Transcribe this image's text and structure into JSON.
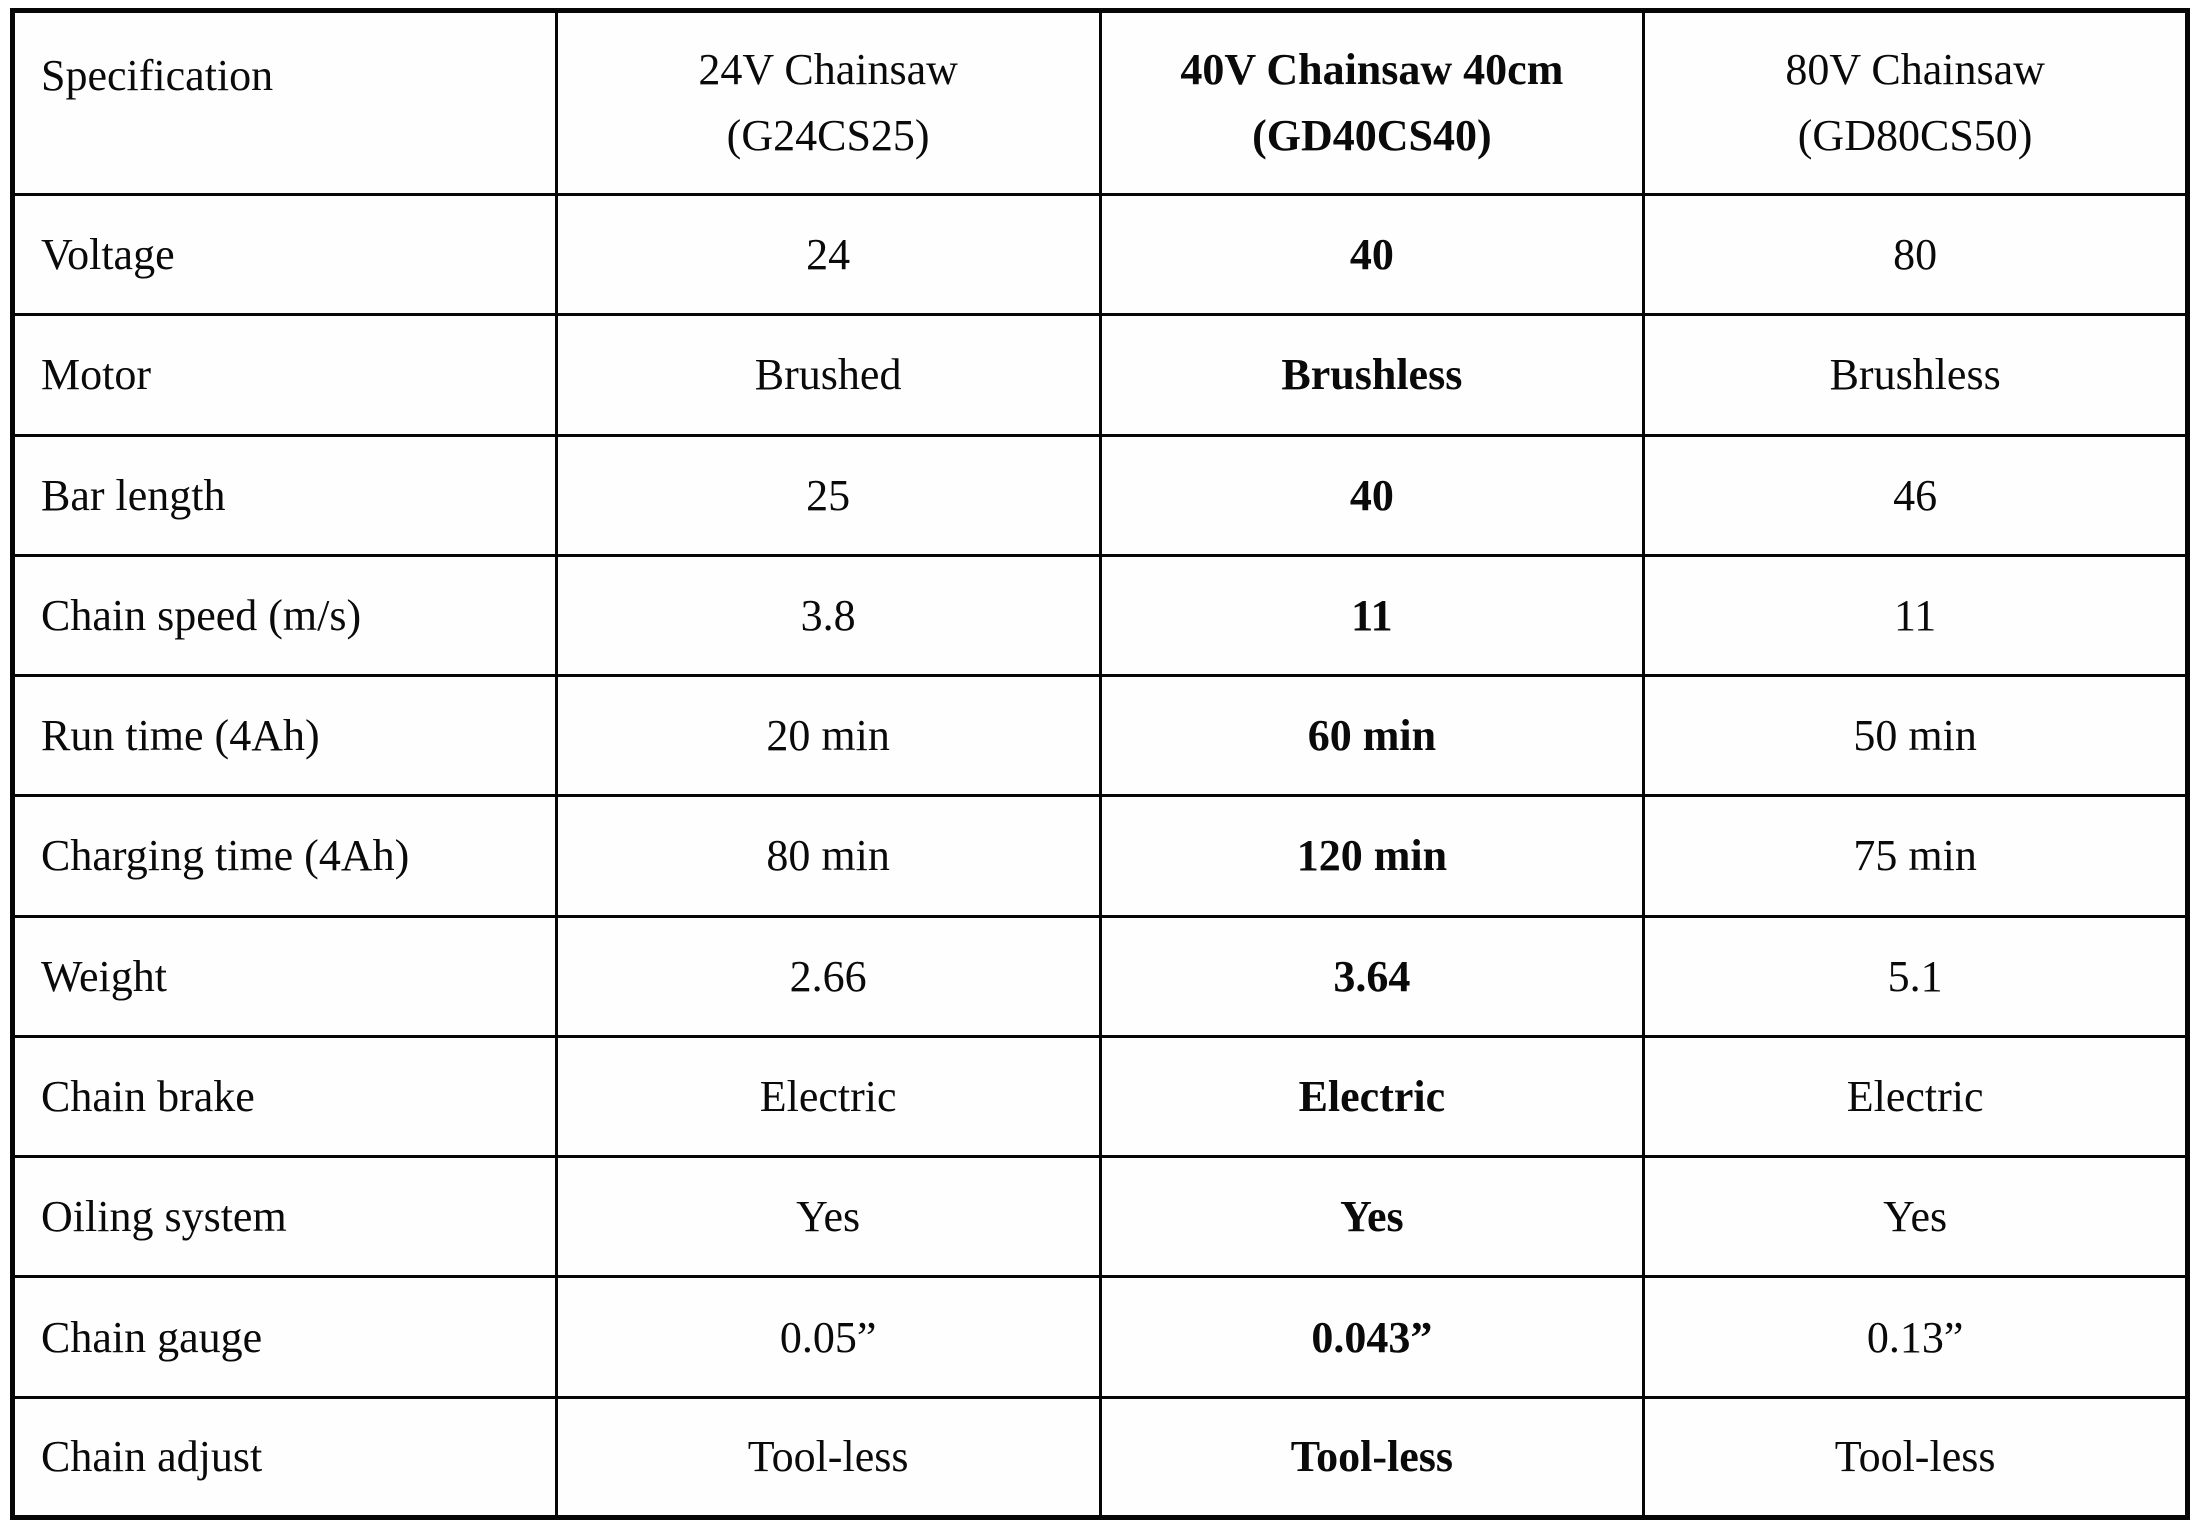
{
  "colors": {
    "background": "#fefefe",
    "grid": "#060606",
    "text": "#0a0a0a"
  },
  "table": {
    "columns": [
      {
        "label": "Specification",
        "model": "",
        "bold": false
      },
      {
        "label": "24V Chainsaw",
        "model": "(G24CS25)",
        "bold": false
      },
      {
        "label": "40V Chainsaw 40cm",
        "model": "(GD40CS40)",
        "bold": true
      },
      {
        "label": "80V Chainsaw",
        "model": "(GD80CS50)",
        "bold": false
      }
    ],
    "rows": [
      {
        "spec": "Voltage",
        "values": [
          "24",
          "40",
          "80"
        ]
      },
      {
        "spec": "Motor",
        "values": [
          "Brushed",
          "Brushless",
          "Brushless"
        ]
      },
      {
        "spec": "Bar length",
        "values": [
          "25",
          "40",
          "46"
        ]
      },
      {
        "spec": "Chain speed (m/s)",
        "values": [
          "3.8",
          "11",
          "11"
        ]
      },
      {
        "spec": "Run time (4Ah)",
        "values": [
          "20 min",
          "60 min",
          "50 min"
        ]
      },
      {
        "spec": "Charging time (4Ah)",
        "values": [
          "80 min",
          "120 min",
          "75 min"
        ]
      },
      {
        "spec": "Weight",
        "values": [
          "2.66",
          "3.64",
          "5.1"
        ]
      },
      {
        "spec": "Chain brake",
        "values": [
          "Electric",
          "Electric",
          "Electric"
        ]
      },
      {
        "spec": "Oiling system",
        "values": [
          "Yes",
          "Yes",
          "Yes"
        ]
      },
      {
        "spec": "Chain gauge",
        "values": [
          "0.05”",
          "0.043”",
          "0.13”"
        ]
      },
      {
        "spec": "Chain adjust",
        "values": [
          "Tool-less",
          "Tool-less",
          "Tool-less"
        ]
      }
    ]
  }
}
